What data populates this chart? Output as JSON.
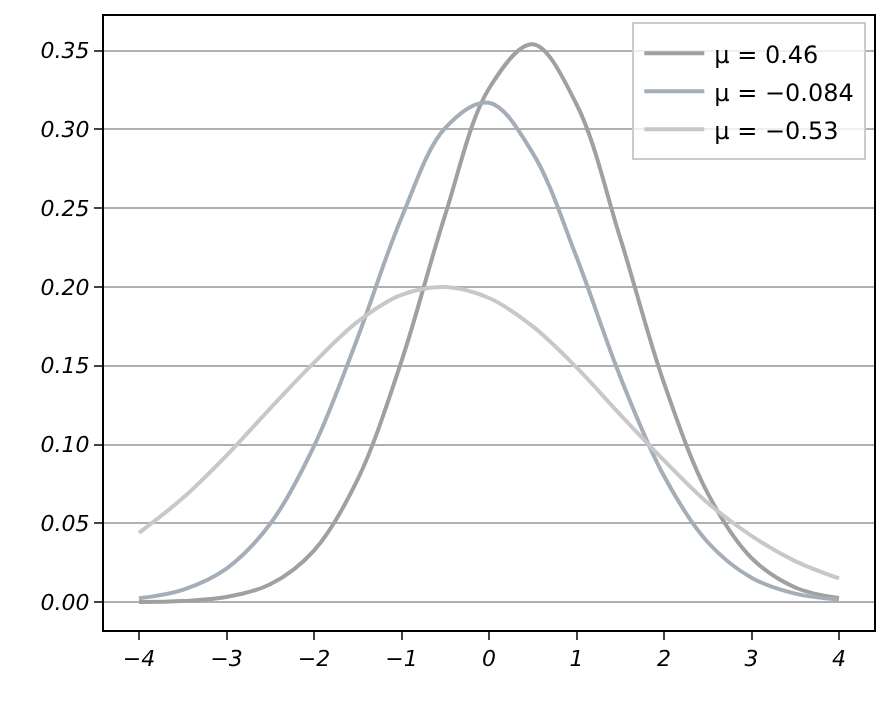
{
  "chart_data": {
    "type": "line",
    "x": [
      -4,
      -3.5,
      -3,
      -2.5,
      -2,
      -1.5,
      -1,
      -0.5,
      0,
      0.5,
      1,
      1.5,
      2,
      2.5,
      3,
      3.5,
      4
    ],
    "series": [
      {
        "name": "μ = 0.46",
        "color": "#a0a0a0",
        "values": [
          0.0001,
          0.0007,
          0.0032,
          0.0113,
          0.0327,
          0.078,
          0.153,
          0.246,
          0.326,
          0.354,
          0.316,
          0.231,
          0.139,
          0.069,
          0.028,
          0.0093,
          0.0026
        ]
      },
      {
        "name": "μ = −0.084",
        "color": "#a4adb8",
        "values": [
          0.0024,
          0.0078,
          0.0213,
          0.0497,
          0.099,
          0.168,
          0.244,
          0.301,
          0.317,
          0.285,
          0.219,
          0.143,
          0.08,
          0.038,
          0.0155,
          0.0054,
          0.0016
        ]
      },
      {
        "name": "μ = −0.53",
        "color": "#c8c8c8",
        "values": [
          0.044,
          0.066,
          0.093,
          0.123,
          0.152,
          0.178,
          0.195,
          0.2,
          0.193,
          0.175,
          0.149,
          0.119,
          0.09,
          0.063,
          0.042,
          0.026,
          0.015
        ]
      }
    ],
    "xlim": [
      -4.4,
      4.4
    ],
    "xticks": [
      {
        "value": -4,
        "label": "−4"
      },
      {
        "value": -3,
        "label": "−3"
      },
      {
        "value": -2,
        "label": "−2"
      },
      {
        "value": -1,
        "label": "−1"
      },
      0,
      1,
      2,
      3,
      4
    ],
    "ylim": [
      -0.0177,
      0.372
    ],
    "yticks": [
      {
        "value": 0,
        "label": "0.00"
      },
      0.05,
      {
        "value": 0.1,
        "label": "0.10"
      },
      0.15,
      {
        "value": 0.2,
        "label": "0.20"
      },
      0.25,
      {
        "value": 0.3,
        "label": "0.30"
      },
      0.35
    ],
    "grid": "y",
    "legend": "top right",
    "marker": "none",
    "line_style": "solid"
  }
}
